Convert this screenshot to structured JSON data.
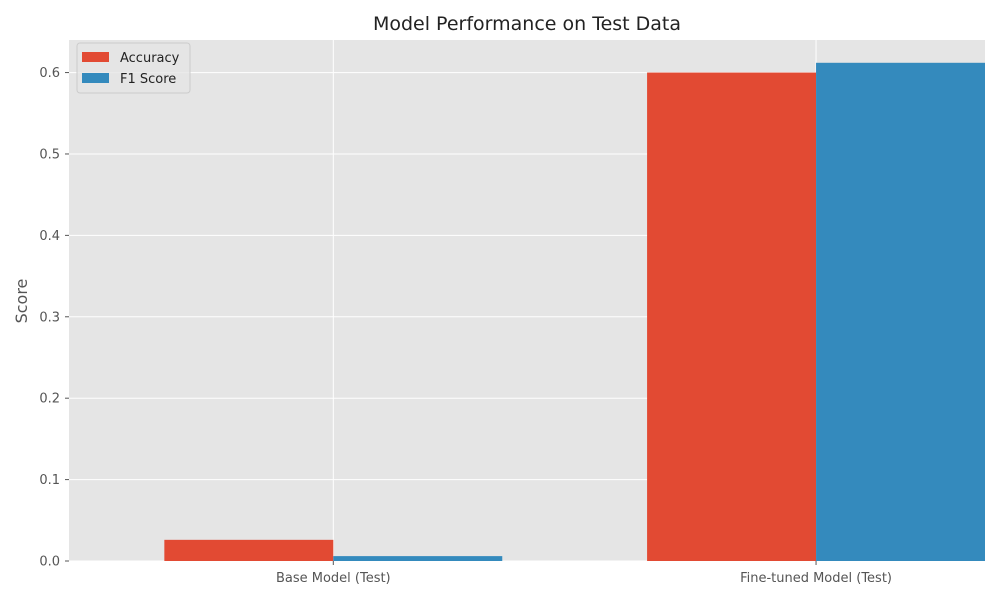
{
  "chart_data": {
    "type": "bar",
    "title": "Model Performance on Test Data",
    "xlabel": "",
    "ylabel": "Score",
    "categories": [
      "Base Model (Test)",
      "Fine-tuned Model (Test)"
    ],
    "series": [
      {
        "name": "Accuracy",
        "values": [
          0.026,
          0.6
        ],
        "color": "#E24A33"
      },
      {
        "name": "F1 Score",
        "values": [
          0.006,
          0.612
        ],
        "color": "#348ABD"
      }
    ],
    "ylim": [
      0,
      0.64
    ],
    "yticks": [
      "0.0",
      "0.1",
      "0.2",
      "0.3",
      "0.4",
      "0.5",
      "0.6"
    ],
    "grid": true,
    "legend_position": "top-left",
    "plot_background": "#E5E5E5",
    "grid_color": "#FFFFFF"
  }
}
